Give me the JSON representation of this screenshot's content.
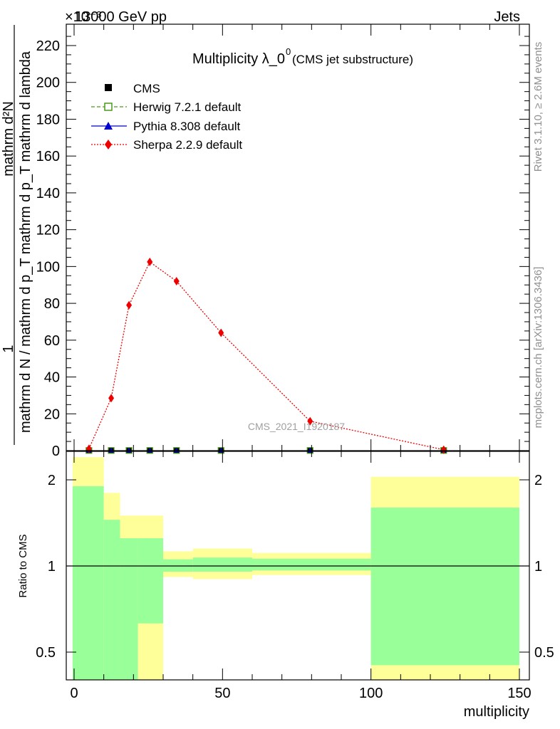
{
  "header": {
    "beam": "13000 GeV pp",
    "process": "Jets",
    "exponent": "×10⁻³"
  },
  "side_labels": {
    "rivet": "Rivet 3.1.10, ≥ 2.6M events",
    "mcplots": "mcplots.cern.ch [arXiv:1306.3436]"
  },
  "chart_data": {
    "type": "line",
    "title": "Multiplicity λ_0⁰",
    "title_main": "Multiplicity λ_0",
    "title_sup": "0",
    "subtitle": "(CMS jet substructure)",
    "watermark": "CMS_2021_I1920187",
    "xlabel": "multiplicity",
    "ylabel_top": {
      "numerator": "1",
      "denominator": "mathrm d N / mathrm d p_T mathrm d p_T mathrm d lambda",
      "inner": "mathrm d²N"
    },
    "ylabel_bottom": "Ratio to CMS",
    "xlim": [
      0,
      150
    ],
    "ylim_top": [
      0,
      230
    ],
    "ylim_bottom": [
      0.4,
      2.4
    ],
    "x_ticks": [
      0,
      50,
      100,
      150
    ],
    "y_ticks_top": [
      0,
      20,
      40,
      60,
      80,
      100,
      120,
      140,
      160,
      180,
      200,
      220
    ],
    "y_ticks_bottom": [
      0.5,
      1,
      2
    ],
    "legend": [
      {
        "name": "CMS",
        "color": "#000000",
        "marker": "square"
      },
      {
        "name": "Herwig 7.2.1 default",
        "color": "#4a9a1a",
        "marker": "open-square",
        "dash": "dashed"
      },
      {
        "name": "Pythia 8.308 default",
        "color": "#0000cc",
        "marker": "triangle",
        "dash": "solid"
      },
      {
        "name": "Sherpa 2.2.9 default",
        "color": "#ee0000",
        "marker": "diamond",
        "dash": "dotted"
      }
    ],
    "series": [
      {
        "name": "CMS",
        "x": [
          5,
          12.5,
          18.5,
          25.5,
          34.5,
          49.5,
          79.5,
          124.5
        ],
        "y": [
          0.1,
          0.1,
          0.1,
          0.1,
          0.1,
          0.1,
          0.1,
          0.1
        ]
      },
      {
        "name": "Herwig 7.2.1 default",
        "x": [
          5,
          12.5,
          18.5,
          25.5,
          34.5,
          49.5,
          79.5,
          124.5
        ],
        "y": [
          0.1,
          0.1,
          0.1,
          0.1,
          0.1,
          0.1,
          0.1,
          0.1
        ]
      },
      {
        "name": "Pythia 8.308 default",
        "x": [
          5,
          12.5,
          18.5,
          25.5,
          34.5,
          49.5,
          79.5,
          124.5
        ],
        "y": [
          0.1,
          0.1,
          0.1,
          0.1,
          0.1,
          0.1,
          0.1,
          0.1
        ]
      },
      {
        "name": "Sherpa 2.2.9 default",
        "x": [
          5,
          12.5,
          18.5,
          25.5,
          34.5,
          49.5,
          79.5,
          124.5
        ],
        "y": [
          1,
          28.5,
          79,
          102.5,
          92,
          64,
          16,
          0.5
        ]
      }
    ],
    "ratio_bands": [
      {
        "x0": -0.5,
        "x1": 10,
        "green": [
          0.4,
          1.9
        ],
        "yellow": [
          0.4,
          2.4
        ]
      },
      {
        "x0": 10,
        "x1": 15.5,
        "green": [
          0.4,
          1.45
        ],
        "yellow": [
          0.4,
          1.8
        ]
      },
      {
        "x0": 15.5,
        "x1": 21.5,
        "green": [
          0.4,
          1.25
        ],
        "yellow": [
          0.4,
          1.5
        ]
      },
      {
        "x0": 21.5,
        "x1": 30,
        "green": [
          0.63,
          1.25
        ],
        "yellow": [
          0.4,
          1.5
        ]
      },
      {
        "x0": 30,
        "x1": 40,
        "green": [
          0.955,
          1.055
        ],
        "yellow": [
          0.915,
          1.125
        ]
      },
      {
        "x0": 40,
        "x1": 60,
        "green": [
          0.955,
          1.07
        ],
        "yellow": [
          0.9,
          1.15
        ]
      },
      {
        "x0": 60,
        "x1": 100,
        "green": [
          0.965,
          1.06
        ],
        "yellow": [
          0.93,
          1.11
        ]
      },
      {
        "x0": 100,
        "x1": 150,
        "green": [
          0.45,
          1.6
        ],
        "yellow": [
          0.4,
          2.05
        ]
      }
    ]
  }
}
